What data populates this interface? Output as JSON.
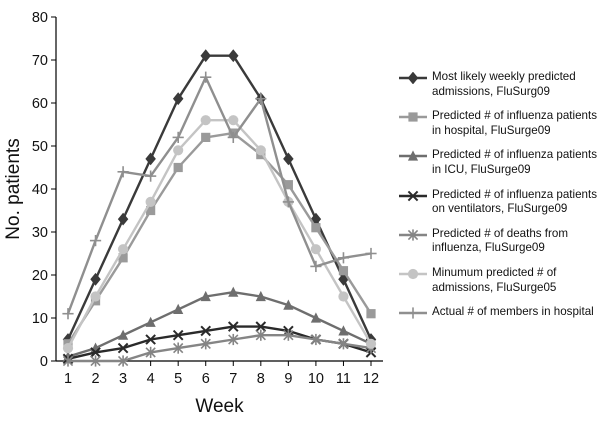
{
  "chart_data": {
    "type": "line",
    "title": "",
    "xlabel": "Week",
    "ylabel": "No. patients",
    "x": [
      1,
      2,
      3,
      4,
      5,
      6,
      7,
      8,
      9,
      10,
      11,
      12
    ],
    "xlim": [
      1,
      12
    ],
    "ylim": [
      0,
      80
    ],
    "yticks": [
      0,
      10,
      20,
      30,
      40,
      50,
      60,
      70,
      80
    ],
    "grid": false,
    "legend_position": "right",
    "series": [
      {
        "name": "Most likely weekly predicted\nadmissions, FluSurg09",
        "color": "#3a3a3a",
        "marker": "diamond",
        "values": [
          5,
          19,
          33,
          47,
          61,
          71,
          71,
          61,
          47,
          33,
          19,
          5
        ]
      },
      {
        "name": "Predicted # of influenza patients\nin hospital, FluSurge09",
        "color": "#9a9a9a",
        "marker": "square",
        "values": [
          4,
          14,
          24,
          35,
          45,
          52,
          53,
          48,
          41,
          31,
          21,
          11
        ]
      },
      {
        "name": "Predicted # of influenza patients\nin ICU, FluSurge09",
        "color": "#6e6e6e",
        "marker": "triangle",
        "values": [
          1,
          3,
          6,
          9,
          12,
          15,
          16,
          15,
          13,
          10,
          7,
          4
        ]
      },
      {
        "name": "Predicted # of influenza patients\non ventilators, FluSurge09",
        "color": "#2a2a2a",
        "marker": "x",
        "values": [
          0.5,
          2,
          3,
          5,
          6,
          7,
          8,
          8,
          7,
          5,
          4,
          2
        ]
      },
      {
        "name": "Predicted # of deaths from\ninfluenza, FluSurge09",
        "color": "#858585",
        "marker": "asterisk",
        "values": [
          0,
          0,
          0,
          2,
          3,
          4,
          5,
          6,
          6,
          5,
          4,
          3
        ]
      },
      {
        "name": "Minumum predicted # of\nadmissions, FluSurge05",
        "color": "#c4c4c4",
        "marker": "circle",
        "values": [
          3,
          15,
          26,
          37,
          49,
          56,
          56,
          49,
          37,
          26,
          15,
          4
        ]
      },
      {
        "name": "Actual # of members in hospital",
        "color": "#8f8f8f",
        "marker": "plus",
        "values": [
          11,
          28,
          44,
          43,
          52,
          66,
          52,
          61,
          37,
          22,
          24,
          25
        ]
      }
    ]
  }
}
